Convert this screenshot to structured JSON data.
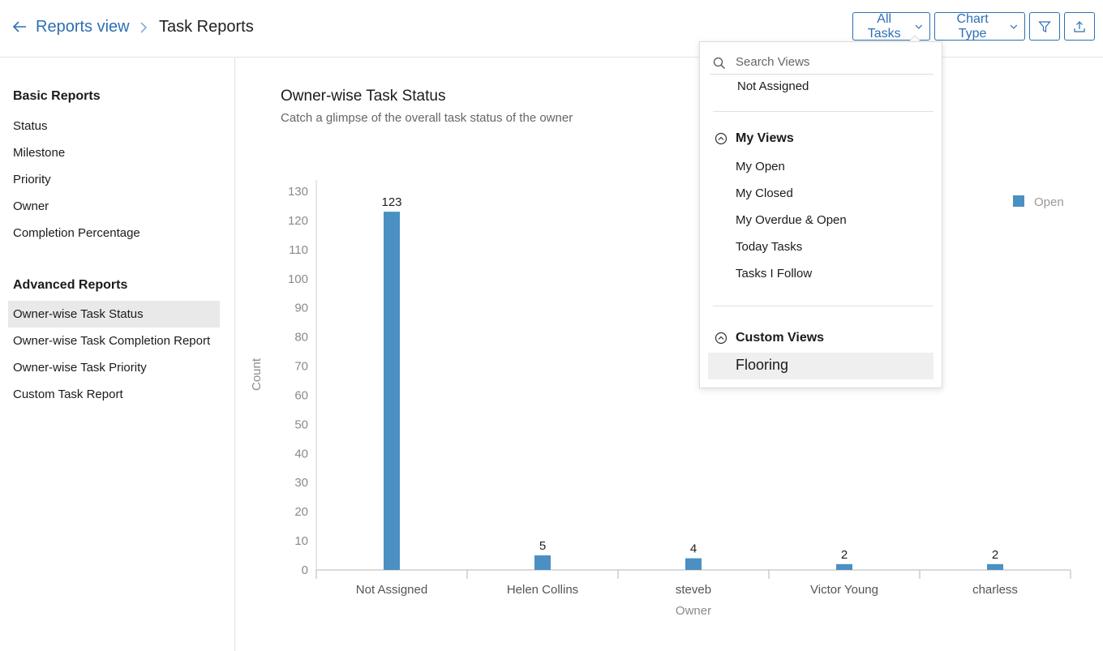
{
  "header": {
    "back_label": "Reports view",
    "current": "Task Reports",
    "all_tasks_label": "All Tasks",
    "chart_type_label": "Chart Type"
  },
  "sidebar": {
    "basic_heading": "Basic Reports",
    "basic_items": [
      "Status",
      "Milestone",
      "Priority",
      "Owner",
      "Completion Percentage"
    ],
    "advanced_heading": "Advanced Reports",
    "advanced_items": [
      "Owner-wise Task Status",
      "Owner-wise Task Completion Report",
      "Owner-wise Task Priority",
      "Custom Task Report"
    ],
    "active_item": "Owner-wise Task Status"
  },
  "main": {
    "title": "Owner-wise Task Status",
    "subtitle": "Catch a glimpse of the overall task status of the owner"
  },
  "dropdown": {
    "search_placeholder": "Search Views",
    "top_item": "Not Assigned",
    "my_views_heading": "My Views",
    "my_views": [
      "My Open",
      "My Closed",
      "My Overdue & Open",
      "Today Tasks",
      "Tasks I Follow"
    ],
    "custom_views_heading": "Custom Views",
    "custom_views": [
      "Flooring"
    ]
  },
  "chart_data": {
    "type": "bar",
    "categories": [
      "Not Assigned",
      "Helen Collins",
      "steveb",
      "Victor Young",
      "charless"
    ],
    "series": [
      {
        "name": "Open",
        "values": [
          123,
          5,
          4,
          2,
          2
        ],
        "color": "#4a90c2"
      }
    ],
    "xlabel": "Owner",
    "ylabel": "Count",
    "ylim": [
      0,
      130
    ],
    "yticks": [
      0,
      10,
      20,
      30,
      40,
      50,
      60,
      70,
      80,
      90,
      100,
      110,
      120,
      130
    ],
    "legend_position": "top-right",
    "grid": false
  },
  "colors": {
    "accent": "#2e6fb3",
    "bar": "#4a90c2"
  }
}
